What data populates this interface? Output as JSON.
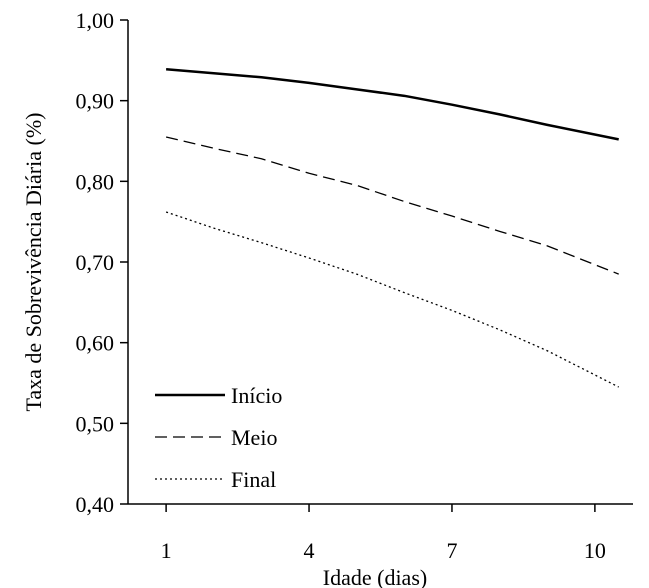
{
  "chart_data": {
    "type": "line",
    "xlabel": "Idade (dias)",
    "ylabel": "Taxa de Sobrevivência Diária (%)",
    "x_ticks": [
      "1",
      "4",
      "7",
      "10"
    ],
    "y_ticks": [
      "0,40",
      "0,50",
      "0,60",
      "0,70",
      "0,80",
      "0,90",
      "1,00"
    ],
    "ylim": [
      0.4,
      1.0
    ],
    "xlim": [
      0.2,
      10.8
    ],
    "grid": false,
    "legend_position": "bottom-left",
    "x": [
      1,
      2,
      3,
      4,
      5,
      6,
      7,
      8,
      9,
      10.5
    ],
    "series": [
      {
        "name": "Início",
        "style": "solid",
        "values": [
          0.939,
          0.934,
          0.929,
          0.922,
          0.914,
          0.906,
          0.895,
          0.883,
          0.87,
          0.852
        ]
      },
      {
        "name": "Meio",
        "style": "dashed",
        "values": [
          0.855,
          0.841,
          0.828,
          0.81,
          0.795,
          0.775,
          0.757,
          0.738,
          0.72,
          0.685
        ]
      },
      {
        "name": "Final",
        "style": "dotted",
        "values": [
          0.762,
          0.742,
          0.724,
          0.705,
          0.685,
          0.662,
          0.64,
          0.616,
          0.59,
          0.545
        ]
      }
    ]
  }
}
